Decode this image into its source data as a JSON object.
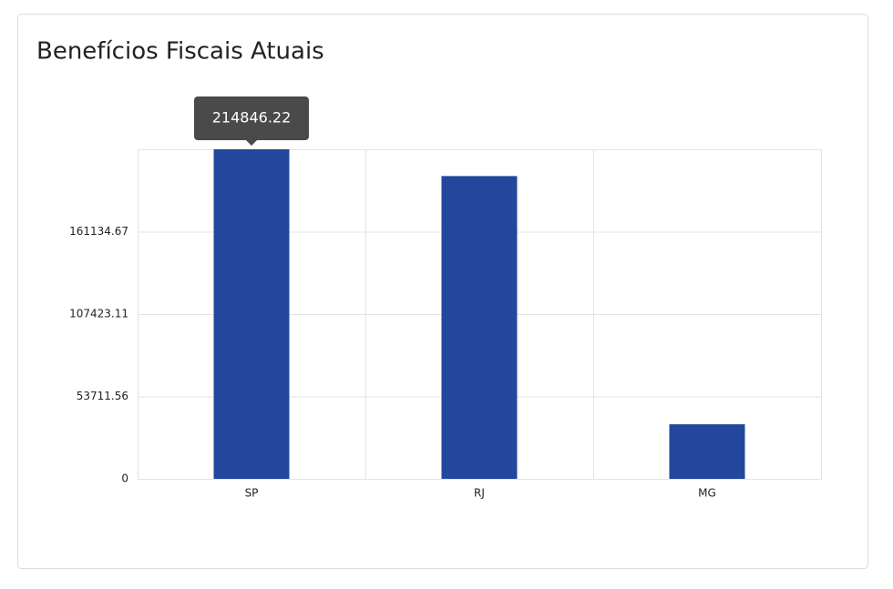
{
  "chart_data": {
    "type": "bar",
    "title": "Benefícios Fiscais Atuais",
    "categories": [
      "SP",
      "RJ",
      "MG"
    ],
    "values": [
      214846.22,
      197400,
      35570
    ],
    "color": "#22479c",
    "ylim": [
      0,
      214846.22
    ],
    "yticks": [
      0,
      53711.56,
      107423.11,
      161134.67
    ],
    "grid": true
  }
}
